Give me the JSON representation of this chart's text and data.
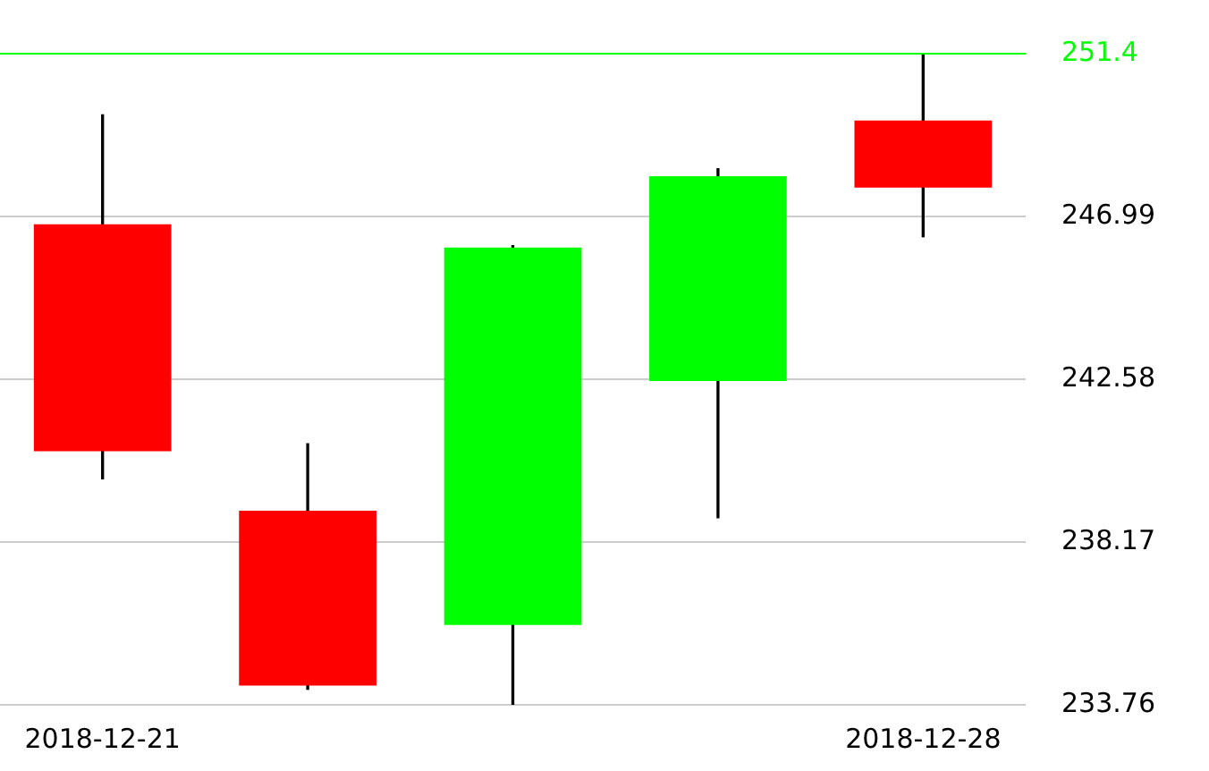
{
  "chart_data": {
    "type": "candlestick",
    "categories": [
      "2018-12-21",
      null,
      null,
      null,
      "2018-12-28"
    ],
    "ohlc": [
      [
        246.78,
        249.74,
        239.88,
        240.63
      ],
      [
        239.02,
        240.83,
        234.18,
        234.28
      ],
      [
        235.92,
        246.2,
        233.76,
        246.15
      ],
      [
        242.53,
        248.28,
        238.83,
        248.08
      ],
      [
        249.59,
        251.4,
        246.44,
        247.77
      ]
    ],
    "colors": [
      "#ff0000",
      "#ff0000",
      "#00ff00",
      "#00ff00",
      "#ff0000"
    ],
    "ylim": [
      233.76,
      251.4
    ],
    "yticks": [
      233.76,
      238.17,
      242.58,
      246.99,
      251.4
    ],
    "grid": "y",
    "legend": false,
    "ref_lines": [
      {
        "axis": "y",
        "value": 251.4,
        "color": "#00ff00"
      }
    ]
  }
}
